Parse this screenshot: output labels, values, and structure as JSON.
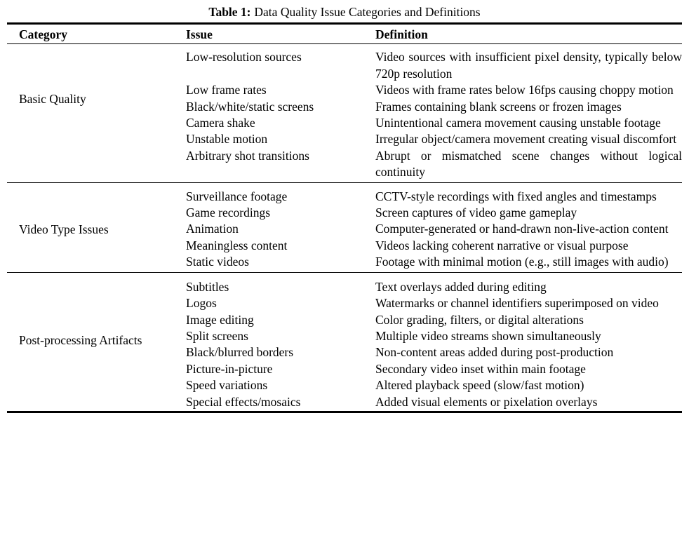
{
  "page": {
    "background": "#ffffff",
    "text_color": "#000000"
  },
  "caption": {
    "label": "Table 1:",
    "text": "Data Quality Issue Categories and Definitions"
  },
  "columns": {
    "category": "Category",
    "issue": "Issue",
    "definition": "Definition"
  },
  "sections": [
    {
      "category": "Basic Quality",
      "rows": [
        {
          "issue": "Low-resolution sources",
          "definition": "Video sources with insufficient pixel density, typically below 720p resolution"
        },
        {
          "issue": "Low frame rates",
          "definition": "Videos with frame rates below 16fps causing choppy motion"
        },
        {
          "issue": "Black/white/static screens",
          "definition": "Frames containing blank screens or frozen images"
        },
        {
          "issue": "Camera shake",
          "definition": "Unintentional camera movement causing unstable footage"
        },
        {
          "issue": "Unstable motion",
          "definition": "Irregular object/camera movement creating visual discomfort"
        },
        {
          "issue": "Arbitrary shot transitions",
          "definition": "Abrupt or mismatched scene changes without logical continuity"
        }
      ]
    },
    {
      "category": "Video Type Issues",
      "rows": [
        {
          "issue": "Surveillance footage",
          "definition": "CCTV-style recordings with fixed angles and timestamps"
        },
        {
          "issue": "Game recordings",
          "definition": "Screen captures of video game gameplay"
        },
        {
          "issue": "Animation",
          "definition": "Computer-generated or hand-drawn non-live-action content"
        },
        {
          "issue": "Meaningless content",
          "definition": "Videos lacking coherent narrative or visual purpose"
        },
        {
          "issue": "Static videos",
          "definition": "Footage with minimal motion (e.g., still images with audio)"
        }
      ]
    },
    {
      "category": "Post-processing Artifacts",
      "rows": [
        {
          "issue": "Subtitles",
          "definition": "Text overlays added during editing"
        },
        {
          "issue": "Logos",
          "definition": "Watermarks or channel identifiers superimposed on video"
        },
        {
          "issue": "Image editing",
          "definition": "Color grading, filters, or digital alterations"
        },
        {
          "issue": "Split screens",
          "definition": "Multiple video streams shown simultaneously"
        },
        {
          "issue": "Black/blurred borders",
          "definition": "Non-content areas added during post-production"
        },
        {
          "issue": "Picture-in-picture",
          "definition": "Secondary video inset within main footage"
        },
        {
          "issue": "Speed variations",
          "definition": "Altered playback speed (slow/fast motion)"
        },
        {
          "issue": "Special effects/mosaics",
          "definition": "Added visual elements or pixelation overlays"
        }
      ]
    }
  ]
}
